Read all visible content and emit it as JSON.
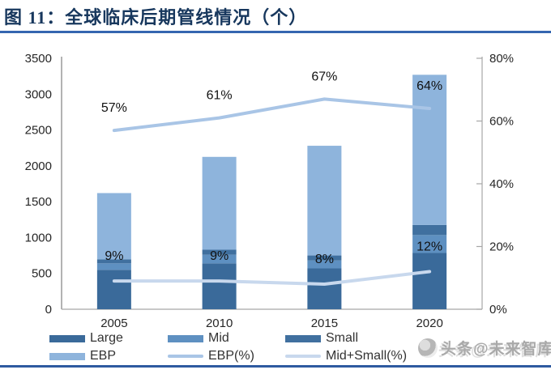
{
  "header": {
    "title": "图 11：全球临床后期管线情况（个）"
  },
  "chart_data": {
    "type": "bar",
    "subtype": "stacked-bar-with-lines",
    "title": "全球临床后期管线情况（个）",
    "categories": [
      "2005",
      "2010",
      "2015",
      "2020"
    ],
    "series": [
      {
        "name": "Large",
        "type": "bar",
        "color": "#3A6A9A",
        "values": [
          550,
          640,
          570,
          785
        ]
      },
      {
        "name": "Mid",
        "type": "bar",
        "color": "#5E90C1",
        "values": [
          90,
          120,
          110,
          250
        ]
      },
      {
        "name": "Small",
        "type": "bar",
        "color": "#40709F",
        "values": [
          55,
          70,
          70,
          140
        ]
      },
      {
        "name": "EBP",
        "type": "bar",
        "color": "#8EB4DC",
        "values": [
          925,
          1295,
          1530,
          2095
        ]
      },
      {
        "name": "EBP(%)",
        "type": "line",
        "color": "#A9C5E6",
        "axis": "right",
        "values": [
          57,
          61,
          67,
          64
        ],
        "labels": [
          "57%",
          "61%",
          "67%",
          "64%"
        ]
      },
      {
        "name": "Mid+Small(%)",
        "type": "line",
        "color": "#C8D8ED",
        "axis": "right",
        "values": [
          9,
          9,
          8,
          12
        ],
        "labels": [
          "9%",
          "9%",
          "8%",
          "12%"
        ]
      }
    ],
    "totals": [
      1620,
      2125,
      2280,
      3270
    ],
    "left_axis": {
      "min": 0,
      "max": 3500,
      "ticks": [
        "0",
        "500",
        "1000",
        "1500",
        "2000",
        "2500",
        "3000",
        "3500"
      ]
    },
    "right_axis": {
      "min": 0,
      "max": 80,
      "ticks": [
        "0%",
        "20%",
        "40%",
        "60%",
        "80%"
      ]
    },
    "grid": false,
    "legend_position": "bottom"
  },
  "legend": {
    "items": [
      {
        "label": "Large",
        "swatch": "bar",
        "color": "#3A6A9A"
      },
      {
        "label": "Mid",
        "swatch": "bar",
        "color": "#5E90C1"
      },
      {
        "label": "Small",
        "swatch": "bar",
        "color": "#40709F"
      },
      {
        "label": "EBP",
        "swatch": "bar",
        "color": "#8EB4DC"
      },
      {
        "label": "EBP(%)",
        "swatch": "line",
        "color": "#A9C5E6"
      },
      {
        "label": "Mid+Small(%)",
        "swatch": "line",
        "color": "#C8D8ED"
      }
    ]
  },
  "watermark": {
    "logo": "circle-logo",
    "text": "头条@未来智库"
  },
  "colors": {
    "title": "#17375D",
    "title_rule": "#3566B0",
    "footer_rule": "#2E5AA0",
    "axis_text": "#262626",
    "left_axis_line": "#808080",
    "right_axis_line": "#A6A6A6",
    "bottom_axis_line": "#A6A6A6"
  }
}
